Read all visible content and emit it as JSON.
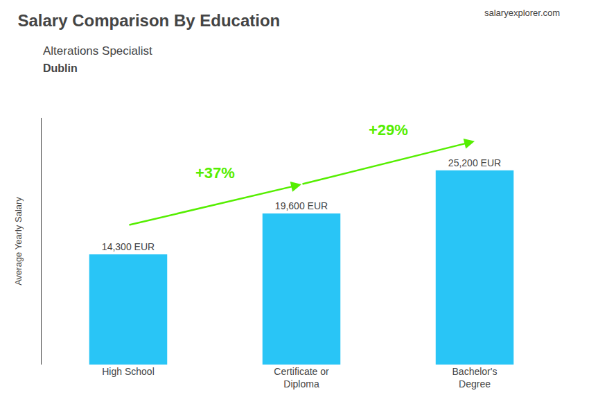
{
  "chart_data": {
    "type": "bar",
    "title": "Salary Comparison By Education",
    "subtitle": [
      "Alterations Specialist",
      "Dublin"
    ],
    "ylabel": "Average Yearly Salary",
    "categories": [
      "High School",
      "Certificate or\nDiploma",
      "Bachelor's\nDegree"
    ],
    "values": [
      14300,
      19600,
      25200
    ],
    "value_labels": [
      "14,300 EUR",
      "19,600 EUR",
      "25,200 EUR"
    ],
    "data_labels": true,
    "color": "#29C5F6",
    "ylim": [
      0,
      32000
    ],
    "tick_labels": "x",
    "grid": false,
    "annotations": [
      {
        "text": "+37%",
        "from": "High School",
        "to": "Certificate or\nDiploma",
        "color": "#55EE00"
      },
      {
        "text": "+29%",
        "from": "Certificate or\nDiploma",
        "to": "Bachelor's\nDegree",
        "color": "#55EE00"
      }
    ],
    "source": [
      "salary",
      "explorer",
      ".com"
    ]
  }
}
